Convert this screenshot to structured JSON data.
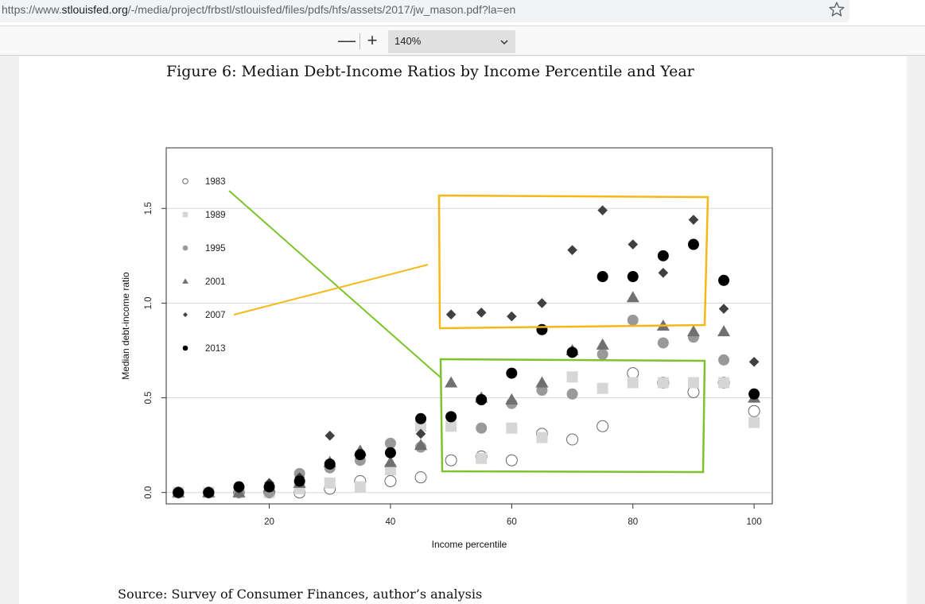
{
  "browser": {
    "url_prefix": "https://www.",
    "url_host": "stlouisfed.org",
    "url_path": "/-/media/project/frbstl/stlouisfed/files/pdfs/hfs/assets/2017/jw_mason.pdf?la=en",
    "bookmark_icon": "star-outline-icon"
  },
  "pdf_toolbar": {
    "zoom_out": "—",
    "zoom_in": "+",
    "zoom_value": "140%"
  },
  "document": {
    "figure_title": "Figure 6: Median Debt-Income Ratios by Income Percentile and Year",
    "source": "Source: Survey of Consumer Finances, author’s analysis",
    "annotation_colors": {
      "green": "#7cc42c",
      "orange": "#f5b817"
    }
  },
  "chart_data": {
    "type": "scatter",
    "title": "",
    "xlabel": "Income percentile",
    "ylabel": "Median debt-income ratio",
    "xlim": [
      3,
      103
    ],
    "ylim": [
      -0.06,
      1.82
    ],
    "xticks": [
      20,
      40,
      60,
      80,
      100
    ],
    "yticks": [
      0.0,
      0.5,
      1.0,
      1.5
    ],
    "ytick_labels": [
      "0.0",
      "0.5",
      "1.0",
      "1.5"
    ],
    "grid": "horizontal",
    "legend_position": "top-left",
    "series": [
      {
        "name": "1983",
        "marker": "open-circle",
        "color": "#666666",
        "x": [
          5,
          10,
          15,
          20,
          25,
          30,
          35,
          40,
          45,
          50,
          55,
          60,
          65,
          70,
          75,
          80,
          85,
          90,
          95,
          100
        ],
        "y": [
          0.0,
          0.0,
          0.0,
          0.0,
          0.0,
          0.02,
          0.06,
          0.06,
          0.08,
          0.17,
          0.19,
          0.17,
          0.31,
          0.28,
          0.35,
          0.63,
          0.58,
          0.53,
          0.58,
          0.43
        ]
      },
      {
        "name": "1989",
        "marker": "square",
        "color": "#d6d6d6",
        "x": [
          5,
          10,
          15,
          20,
          25,
          30,
          35,
          40,
          45,
          50,
          55,
          60,
          65,
          70,
          75,
          80,
          85,
          90,
          95,
          100
        ],
        "y": [
          0.0,
          0.0,
          0.0,
          0.0,
          0.02,
          0.05,
          0.03,
          0.12,
          0.35,
          0.35,
          0.18,
          0.34,
          0.29,
          0.61,
          0.55,
          0.58,
          0.58,
          0.58,
          0.58,
          0.37
        ]
      },
      {
        "name": "1995",
        "marker": "filled-circle",
        "color": "#999999",
        "x": [
          5,
          10,
          15,
          20,
          25,
          30,
          35,
          40,
          45,
          50,
          55,
          60,
          65,
          70,
          75,
          80,
          85,
          90,
          95,
          100
        ],
        "y": [
          0.0,
          0.0,
          0.0,
          0.0,
          0.1,
          0.13,
          0.17,
          0.26,
          0.24,
          0.4,
          0.34,
          0.47,
          0.54,
          0.52,
          0.73,
          0.91,
          0.79,
          0.82,
          0.7,
          0.52
        ]
      },
      {
        "name": "2001",
        "marker": "triangle",
        "color": "#707070",
        "x": [
          5,
          10,
          15,
          20,
          25,
          30,
          35,
          40,
          45,
          50,
          55,
          60,
          65,
          70,
          75,
          80,
          85,
          90,
          95,
          100
        ],
        "y": [
          0.0,
          0.0,
          0.0,
          0.03,
          0.05,
          0.16,
          0.22,
          0.16,
          0.25,
          0.58,
          0.5,
          0.49,
          0.58,
          0.75,
          0.78,
          1.03,
          0.88,
          0.85,
          0.85,
          0.5
        ]
      },
      {
        "name": "2007",
        "marker": "diamond",
        "color": "#404040",
        "x": [
          5,
          10,
          15,
          20,
          25,
          30,
          35,
          40,
          45,
          50,
          55,
          60,
          65,
          70,
          75,
          80,
          85,
          90,
          95,
          100
        ],
        "y": [
          0.0,
          0.0,
          0.02,
          0.05,
          0.08,
          0.3,
          0.2,
          0.21,
          0.31,
          0.94,
          0.95,
          0.93,
          1.0,
          1.28,
          1.49,
          1.31,
          1.16,
          1.44,
          0.97,
          0.69
        ]
      },
      {
        "name": "2013",
        "marker": "filled-circle",
        "color": "#000000",
        "x": [
          5,
          10,
          15,
          20,
          25,
          30,
          35,
          40,
          45,
          50,
          55,
          60,
          65,
          70,
          75,
          80,
          85,
          90,
          95,
          100
        ],
        "y": [
          0.0,
          0.0,
          0.03,
          0.03,
          0.06,
          0.15,
          0.2,
          0.21,
          0.39,
          0.4,
          0.49,
          0.63,
          0.86,
          0.74,
          1.14,
          1.14,
          1.25,
          1.31,
          1.12,
          0.52
        ]
      }
    ]
  }
}
